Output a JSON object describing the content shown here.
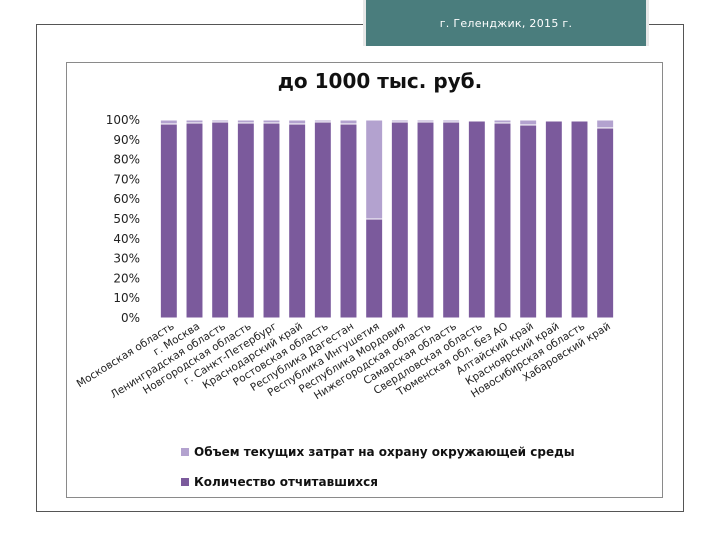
{
  "header": {
    "title": "г. Геленджик, 2015 г."
  },
  "chart_data": {
    "type": "bar",
    "stacked": true,
    "percent": true,
    "title": "до 1000 тыс. руб.",
    "xlabel": "",
    "ylabel": "",
    "ylim": [
      0,
      100
    ],
    "y_ticks": [
      "0%",
      "10%",
      "20%",
      "30%",
      "40%",
      "50%",
      "60%",
      "70%",
      "80%",
      "90%",
      "100%"
    ],
    "grid": false,
    "legend_position": "bottom",
    "categories": [
      "Московская область",
      "г. Москва",
      "Ленинградская область",
      "Новгородская область",
      "г. Санкт-Петербург",
      "Краснодарский край",
      "Ростовская область",
      "Республика Дагестан",
      "Республика Ингушетия",
      "Республика Мордовия",
      "Нижегородская область",
      "Самарская область",
      "Свердловская область",
      "Тюменская обл. без АО",
      "Алтайский край",
      "Красноярский край",
      "Новосибирская область",
      "Хабаровский край"
    ],
    "series": [
      {
        "name": "Количество отчитавшихся",
        "color": "#7b5a9c",
        "values": [
          98,
          98.5,
          99,
          98.5,
          98.5,
          98,
          99,
          98,
          50,
          99,
          99,
          99,
          99.5,
          98.5,
          97.5,
          99.5,
          99.5,
          96
        ]
      },
      {
        "name": "Объем текущих затрат на охрану окружающей среды",
        "color": "#b3a2cf",
        "values": [
          2,
          1.5,
          1,
          1.5,
          1.5,
          2,
          1,
          2,
          50,
          1,
          1,
          1,
          0.5,
          1.5,
          2.5,
          0.5,
          0.5,
          4
        ]
      }
    ],
    "legend": [
      {
        "name": "Объем текущих затрат на охрану окружающей среды",
        "color": "#b3a2cf"
      },
      {
        "name": "Количество отчитавшихся",
        "color": "#7b5a9c"
      }
    ]
  }
}
